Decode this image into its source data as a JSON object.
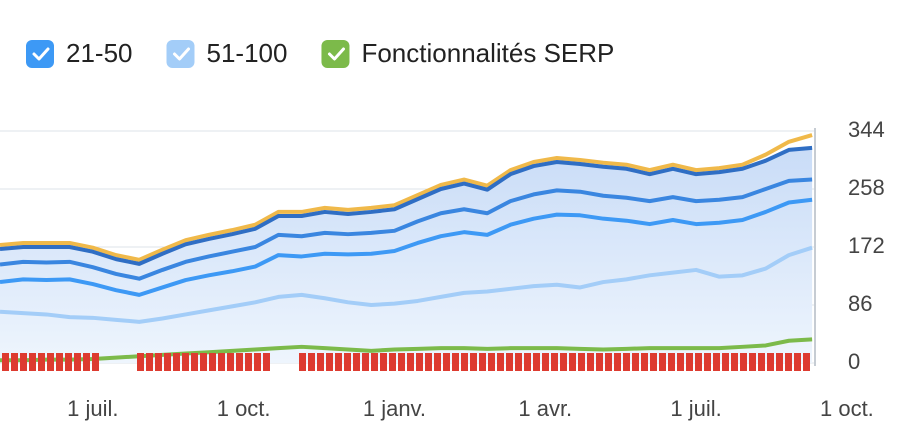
{
  "chart_data": {
    "type": "line",
    "legend": [
      {
        "name": "21-50",
        "color": "#3d99f5"
      },
      {
        "name": "51-100",
        "color": "#a3cdf8"
      },
      {
        "name": "Fonctionnalités SERP",
        "color": "#7cba4a"
      }
    ],
    "x": [
      0,
      2,
      4,
      6,
      8,
      10,
      12,
      14,
      16,
      18,
      20,
      22,
      24,
      26,
      28,
      30,
      32,
      34,
      36,
      38,
      40,
      42,
      44,
      46,
      48,
      50,
      52,
      54,
      56,
      58,
      60,
      62,
      64,
      66,
      68,
      70
    ],
    "xlim": [
      0,
      70.25
    ],
    "xticks": [
      {
        "value": 8,
        "label": "1 juil."
      },
      {
        "value": 21,
        "label": "1 oct."
      },
      {
        "value": 34,
        "label": "1 janv."
      },
      {
        "value": 47,
        "label": "1 avr."
      },
      {
        "value": 60,
        "label": "1 juil."
      },
      {
        "value": 73,
        "label": "1 oct."
      }
    ],
    "ylim": [
      0,
      344
    ],
    "yticks": [
      0,
      86,
      172,
      258,
      344
    ],
    "grid": true,
    "series": [
      {
        "color": "#f0b94a",
        "values": [
          175,
          178,
          178,
          178,
          171,
          160,
          153,
          168,
          182,
          190,
          197,
          205,
          224,
          224,
          230,
          227,
          230,
          234,
          249,
          264,
          272,
          263,
          286,
          298,
          304,
          301,
          297,
          294,
          286,
          294,
          286,
          289,
          294,
          309,
          328,
          338
        ]
      },
      {
        "color": "#2f6ec4",
        "values": [
          169,
          172,
          172,
          172,
          165,
          154,
          147,
          162,
          176,
          184,
          191,
          199,
          218,
          218,
          224,
          221,
          224,
          228,
          243,
          258,
          266,
          257,
          280,
          292,
          298,
          295,
          291,
          288,
          280,
          288,
          280,
          283,
          288,
          300,
          316,
          319
        ]
      },
      {
        "color": "#3a86e0",
        "values": [
          146,
          150,
          149,
          150,
          142,
          132,
          125,
          138,
          150,
          158,
          165,
          172,
          190,
          188,
          193,
          191,
          193,
          196,
          210,
          222,
          228,
          222,
          240,
          250,
          256,
          254,
          248,
          245,
          240,
          246,
          240,
          242,
          246,
          258,
          270,
          272
        ]
      },
      {
        "name": "21-50",
        "color": "#3d99f5",
        "values": [
          120,
          124,
          123,
          124,
          117,
          108,
          101,
          112,
          123,
          130,
          136,
          143,
          160,
          158,
          162,
          161,
          162,
          166,
          178,
          188,
          194,
          190,
          205,
          214,
          220,
          219,
          214,
          211,
          206,
          212,
          206,
          208,
          212,
          224,
          238,
          242
        ]
      },
      {
        "name": "51-100",
        "color": "#a3cdf8",
        "values": [
          76,
          74,
          72,
          68,
          67,
          64,
          61,
          66,
          72,
          78,
          84,
          90,
          98,
          101,
          96,
          90,
          86,
          88,
          92,
          98,
          104,
          106,
          110,
          114,
          116,
          112,
          120,
          124,
          130,
          134,
          138,
          128,
          130,
          140,
          160,
          171
        ]
      },
      {
        "name": "Fonctionnalités SERP",
        "color": "#7cba4a",
        "values": [
          4,
          4,
          5,
          5,
          6,
          8,
          10,
          12,
          14,
          16,
          18,
          20,
          22,
          24,
          22,
          20,
          18,
          20,
          21,
          22,
          22,
          21,
          22,
          22,
          22,
          21,
          20,
          21,
          22,
          22,
          22,
          22,
          24,
          26,
          33,
          35
        ]
      }
    ]
  }
}
